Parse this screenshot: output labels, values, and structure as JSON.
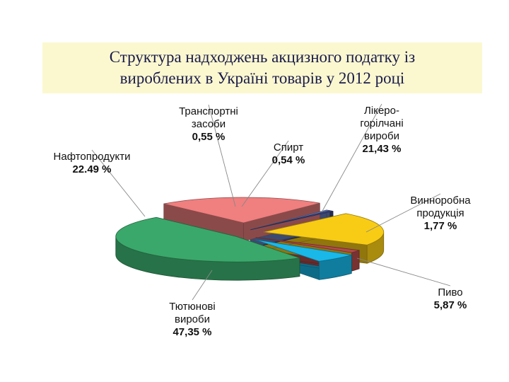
{
  "title": {
    "line1": "Структура надходжень акцизного податку із",
    "line2": "вироблених в Україні товарів у 2012 році"
  },
  "chart_data": {
    "type": "pie",
    "style": "3d-exploded",
    "slices": [
      {
        "label_lines": [
          "Тютюнові",
          "вироби"
        ],
        "value": 47.35,
        "value_text": "47,35 %",
        "color": "#3aa86a"
      },
      {
        "label_lines": [
          "Нафтопродукти"
        ],
        "value": 22.49,
        "value_text": "22.49 %",
        "color": "#f07f7f"
      },
      {
        "label_lines": [
          "Транспортні",
          "засоби"
        ],
        "value": 0.55,
        "value_text": "0,55 %",
        "color": "#6a7fc0"
      },
      {
        "label_lines": [
          "Спирт"
        ],
        "value": 0.54,
        "value_text": "0,54 %",
        "color": "#3e4a8a"
      },
      {
        "label_lines": [
          "Лікеро-",
          "горілчані",
          "вироби"
        ],
        "value": 21.43,
        "value_text": "21,43 %",
        "color": "#f8cc14"
      },
      {
        "label_lines": [
          "Винноробна",
          "продукція"
        ],
        "value": 1.77,
        "value_text": "1,77 %",
        "color": "#b04a4a"
      },
      {
        "label_lines": [
          "Пиво"
        ],
        "value": 5.87,
        "value_text": "5,87 %",
        "color": "#19b8e8"
      }
    ]
  }
}
